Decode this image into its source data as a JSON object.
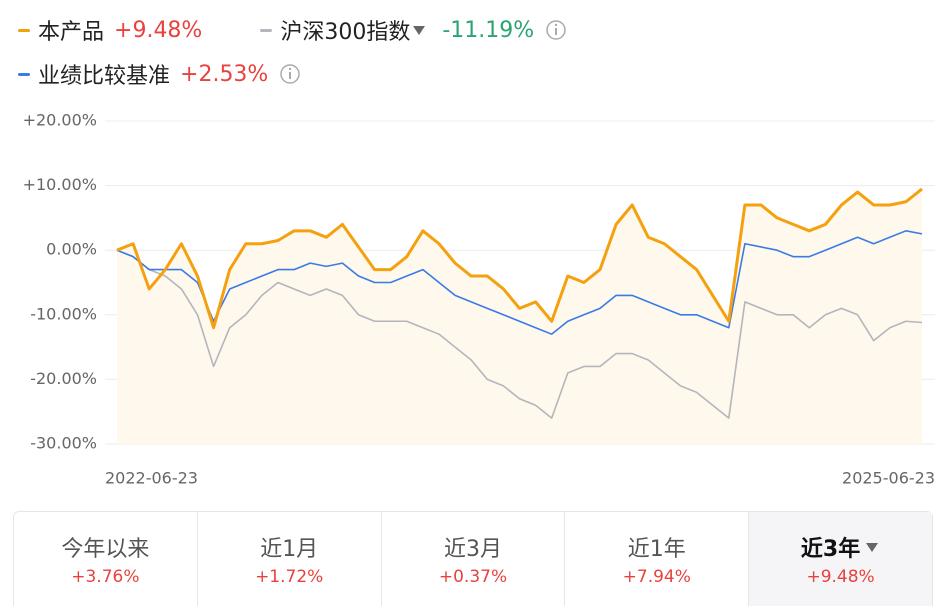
{
  "chart_data": {
    "type": "line",
    "categories": [
      "2022-06-23",
      null,
      null,
      null,
      null,
      null,
      null,
      null,
      null,
      null,
      null,
      null,
      null,
      null,
      null,
      null,
      null,
      null,
      null,
      null,
      null,
      null,
      null,
      null,
      null,
      null,
      null,
      null,
      null,
      null,
      null,
      null,
      null,
      null,
      null,
      null,
      null,
      null,
      null,
      null,
      null,
      null,
      null,
      null,
      null,
      null,
      null,
      null,
      null,
      null,
      "2025-06-23"
    ],
    "series": [
      {
        "name": "本产品",
        "color": "#f5a00f",
        "change_label": "+9.48%",
        "fill": true,
        "values": [
          0,
          1,
          -6,
          -3,
          1,
          -4,
          -12,
          -3,
          1,
          1,
          1.5,
          3,
          3,
          2,
          4,
          0.5,
          -3,
          -3,
          -1,
          3,
          1,
          -2,
          -4,
          -4,
          -6,
          -9,
          -8,
          -11,
          -4,
          -5,
          -3,
          4,
          7,
          2,
          1,
          -1,
          -3,
          -7,
          -11,
          7,
          7,
          5,
          4,
          3,
          4,
          7,
          9,
          7,
          7,
          7.5,
          9.48
        ]
      },
      {
        "name": "沪深300指数",
        "color": "#b5b5bd",
        "change_label": "-11.19%",
        "fill": false,
        "values": [
          0,
          -1,
          -3,
          -4,
          -6,
          -10,
          -18,
          -12,
          -10,
          -7,
          -5,
          -6,
          -7,
          -6,
          -7,
          -10,
          -11,
          -11,
          -11,
          -12,
          -13,
          -15,
          -17,
          -20,
          -21,
          -23,
          -24,
          -26,
          -19,
          -18,
          -18,
          -16,
          -16,
          -17,
          -19,
          -21,
          -22,
          -24,
          -26,
          -8,
          -9,
          -10,
          -10,
          -12,
          -10,
          -9,
          -10,
          -14,
          -12,
          -11,
          -11.19
        ]
      },
      {
        "name": "业绩比较基准",
        "color": "#3a7be8",
        "change_label": "+2.53%",
        "fill": false,
        "values": [
          0,
          -1,
          -3,
          -3,
          -3,
          -5,
          -11,
          -6,
          -5,
          -4,
          -3,
          -3,
          -2,
          -2.5,
          -2,
          -4,
          -5,
          -5,
          -4,
          -3,
          -5,
          -7,
          -8,
          -9,
          -10,
          -11,
          -12,
          -13,
          -11,
          -10,
          -9,
          -7,
          -7,
          -8,
          -9,
          -10,
          -10,
          -11,
          -12,
          1,
          0.5,
          0,
          -1,
          -1,
          0,
          1,
          2,
          1,
          2,
          3,
          2.53
        ]
      }
    ],
    "ylim": [
      -30,
      20
    ],
    "yticks": [
      {
        "value": 20,
        "label": "+20.00%"
      },
      {
        "value": 10,
        "label": "+10.00%"
      },
      {
        "value": 0,
        "label": "0.00%"
      },
      {
        "value": -10,
        "label": "-10.00%"
      },
      {
        "value": -20,
        "label": "-20.00%"
      },
      {
        "value": -30,
        "label": "-30.00%"
      }
    ],
    "grid": true
  },
  "tabs": [
    {
      "label": "今年以来",
      "change": "+3.76%"
    },
    {
      "label": "近1月",
      "change": "+1.72%"
    },
    {
      "label": "近3月",
      "change": "+0.37%"
    },
    {
      "label": "近1年",
      "change": "+7.94%"
    },
    {
      "label": "近3年",
      "change": "+9.48%"
    }
  ],
  "active_tab": 4
}
